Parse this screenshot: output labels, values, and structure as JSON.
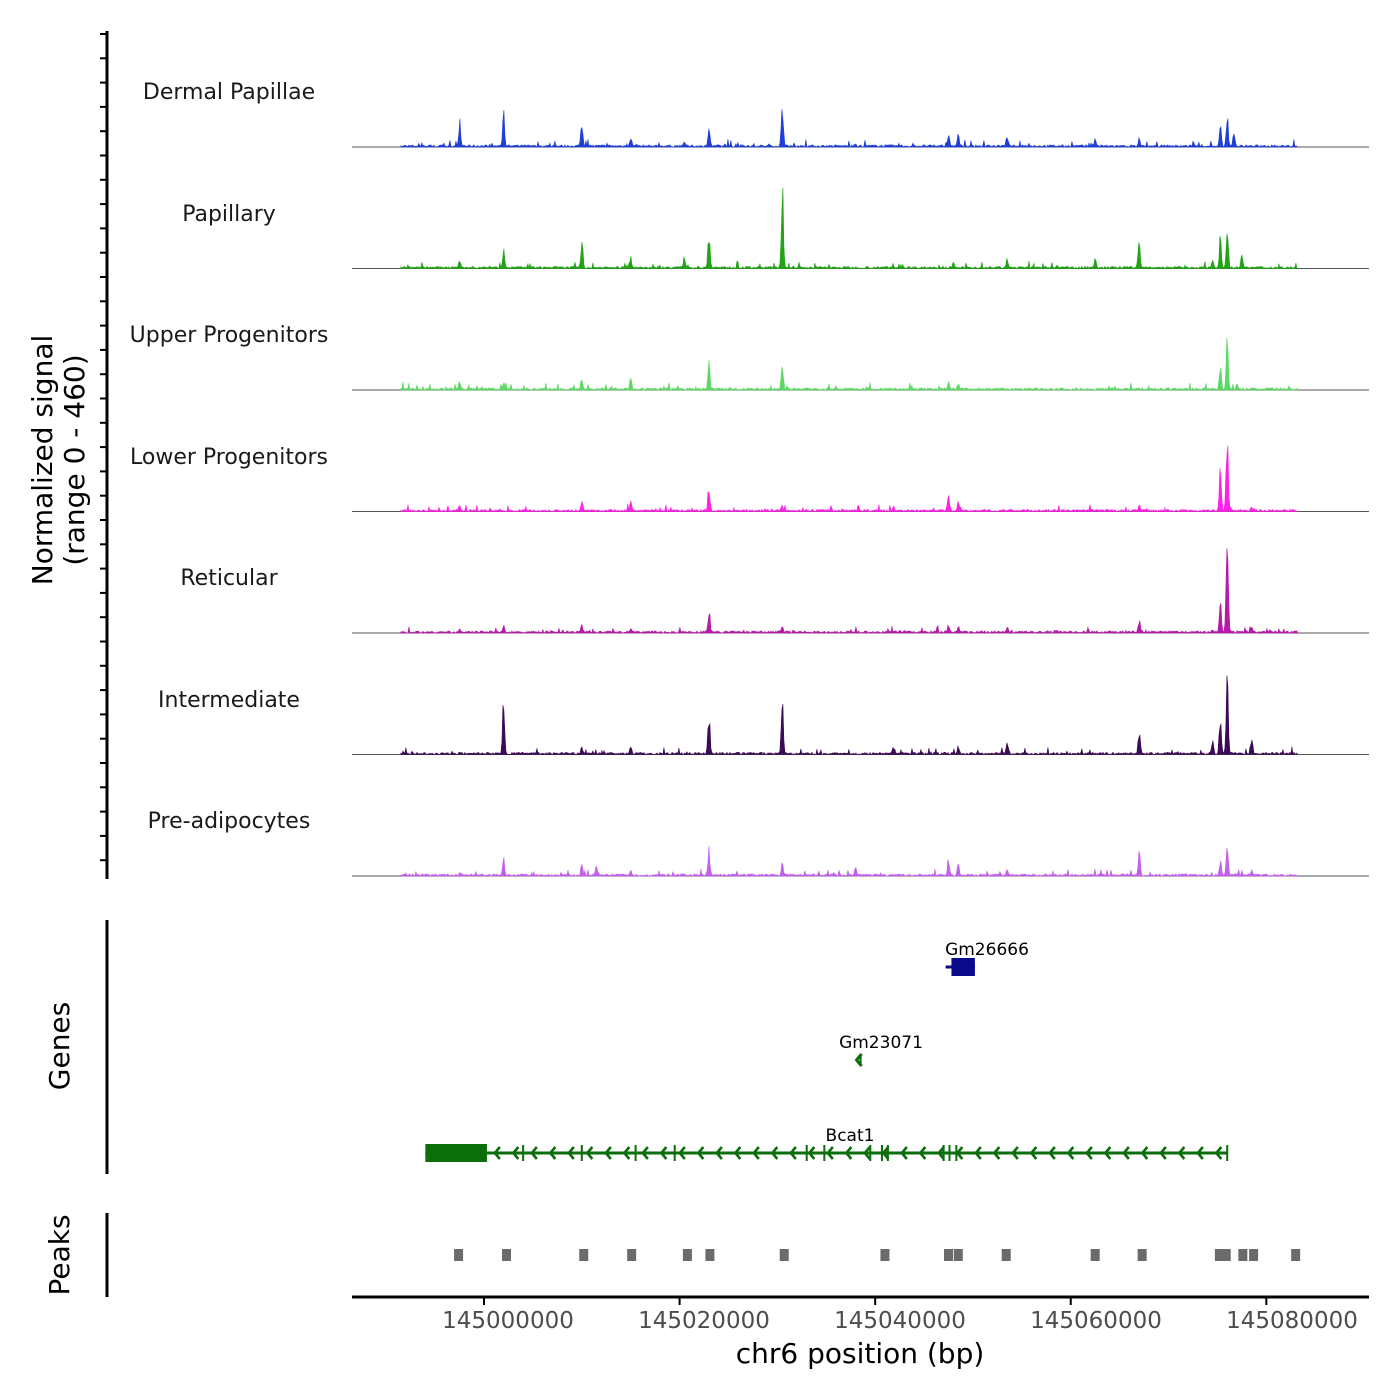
{
  "chart_data": {
    "type": "area",
    "title": "",
    "ylabel_lines": [
      "Normalized signal",
      "(range 0 - 460)"
    ],
    "ylim": [
      0,
      460
    ],
    "xlabel": "chr6 position (bp)",
    "xlim": [
      144986500,
      145090500
    ],
    "x_ticks": [
      145000000,
      145020000,
      145040000,
      145060000,
      145080000
    ],
    "x_tick_labels": [
      "145000000",
      "145020000",
      "145040000",
      "145060000",
      "145080000"
    ],
    "panel_labels": {
      "genes": "Genes",
      "peaks": "Peaks"
    },
    "series": [
      {
        "name": "Dermal Papillae",
        "color": "#1f3fd6",
        "peaks": [
          [
            144991500,
            8
          ],
          [
            144994500,
            10
          ],
          [
            144997500,
            130
          ],
          [
            145002000,
            170
          ],
          [
            145010000,
            140
          ],
          [
            145015000,
            55
          ],
          [
            145020500,
            30
          ],
          [
            145023000,
            125
          ],
          [
            145030500,
            245
          ],
          [
            145038000,
            15
          ],
          [
            145047500,
            70
          ],
          [
            145048500,
            65
          ],
          [
            145053500,
            70
          ],
          [
            145062500,
            45
          ],
          [
            145067000,
            45
          ],
          [
            145075300,
            110
          ],
          [
            145076000,
            160
          ],
          [
            145076700,
            90
          ]
        ]
      },
      {
        "name": "Papillary",
        "color": "#22a318",
        "peaks": [
          [
            144991500,
            10
          ],
          [
            144997500,
            55
          ],
          [
            145002000,
            110
          ],
          [
            145010000,
            165
          ],
          [
            145015000,
            55
          ],
          [
            145020500,
            70
          ],
          [
            145023000,
            180
          ],
          [
            145030500,
            460
          ],
          [
            145048000,
            30
          ],
          [
            145053500,
            55
          ],
          [
            145062500,
            55
          ],
          [
            145067000,
            140
          ],
          [
            145074500,
            40
          ],
          [
            145075300,
            190
          ],
          [
            145076000,
            250
          ],
          [
            145077500,
            70
          ]
        ]
      },
      {
        "name": "Upper Progenitors",
        "color": "#5ed865",
        "peaks": [
          [
            144997500,
            50
          ],
          [
            145002000,
            45
          ],
          [
            145010000,
            60
          ],
          [
            145015000,
            70
          ],
          [
            145023000,
            140
          ],
          [
            145030500,
            125
          ],
          [
            145047500,
            40
          ],
          [
            145048500,
            35
          ],
          [
            145075300,
            140
          ],
          [
            145076000,
            250
          ],
          [
            145077000,
            30
          ]
        ]
      },
      {
        "name": "Lower Progenitors",
        "color": "#ff22e6",
        "peaks": [
          [
            144997500,
            35
          ],
          [
            145010000,
            60
          ],
          [
            145015000,
            50
          ],
          [
            145023000,
            150
          ],
          [
            145030500,
            30
          ],
          [
            145047500,
            100
          ],
          [
            145048500,
            55
          ],
          [
            145067000,
            35
          ],
          [
            145075300,
            300
          ],
          [
            145076000,
            460
          ],
          [
            145078500,
            25
          ]
        ]
      },
      {
        "name": "Reticular",
        "color": "#b51aa8",
        "peaks": [
          [
            144997500,
            20
          ],
          [
            145002000,
            40
          ],
          [
            145010000,
            45
          ],
          [
            145015000,
            30
          ],
          [
            145023000,
            130
          ],
          [
            145030500,
            35
          ],
          [
            145047500,
            45
          ],
          [
            145048500,
            40
          ],
          [
            145053500,
            35
          ],
          [
            145067000,
            75
          ],
          [
            145074500,
            25
          ],
          [
            145075300,
            150
          ],
          [
            145076000,
            460
          ],
          [
            145078500,
            40
          ]
        ]
      },
      {
        "name": "Intermediate",
        "color": "#3d0a55",
        "peaks": [
          [
            144997500,
            15
          ],
          [
            145002000,
            280
          ],
          [
            145010000,
            40
          ],
          [
            145015000,
            45
          ],
          [
            145023000,
            230
          ],
          [
            145030500,
            330
          ],
          [
            145048500,
            45
          ],
          [
            145053500,
            60
          ],
          [
            145067000,
            135
          ],
          [
            145074500,
            70
          ],
          [
            145075300,
            220
          ],
          [
            145076000,
            410
          ],
          [
            145078500,
            85
          ]
        ]
      },
      {
        "name": "Pre-adipocytes",
        "color": "#c25ff0",
        "peaks": [
          [
            144997500,
            20
          ],
          [
            145002000,
            100
          ],
          [
            145010000,
            60
          ],
          [
            145011500,
            55
          ],
          [
            145015000,
            35
          ],
          [
            145023000,
            140
          ],
          [
            145030500,
            75
          ],
          [
            145038000,
            40
          ],
          [
            145047500,
            90
          ],
          [
            145048500,
            60
          ],
          [
            145053500,
            40
          ],
          [
            145067000,
            120
          ],
          [
            145075300,
            90
          ],
          [
            145076000,
            200
          ],
          [
            145078500,
            30
          ]
        ]
      }
    ],
    "genes": [
      {
        "name": "Gm26666",
        "strand": "-",
        "color": "#0a0a8c",
        "row": 1,
        "start": 145047200,
        "end": 145050200,
        "blocks": [
          [
            145047800,
            145050200
          ]
        ]
      },
      {
        "name": "Gm23071",
        "strand": "-",
        "color": "#0a6e0a",
        "row": 2,
        "start": 145038200,
        "end": 145038700,
        "blocks": []
      },
      {
        "name": "Bcat1",
        "strand": "-",
        "color": "#0a6e0a",
        "row": 3,
        "start": 144994000,
        "end": 145076000,
        "label_x": 145034500,
        "blocks": [
          [
            144994000,
            145000300
          ]
        ],
        "exons": [
          145004000,
          145010000,
          145015500,
          145019500,
          145033000,
          145034800,
          145039500,
          145040700,
          145041300,
          145047000,
          145047600,
          145048300,
          145076000
        ]
      }
    ],
    "peak_regions": [
      144997400,
      145002300,
      145010200,
      145015100,
      145020800,
      145023100,
      145030700,
      145041000,
      145047500,
      145048500,
      145053400,
      145062500,
      145067300,
      145075200,
      145075900,
      145077600,
      145078700,
      145083000
    ]
  }
}
